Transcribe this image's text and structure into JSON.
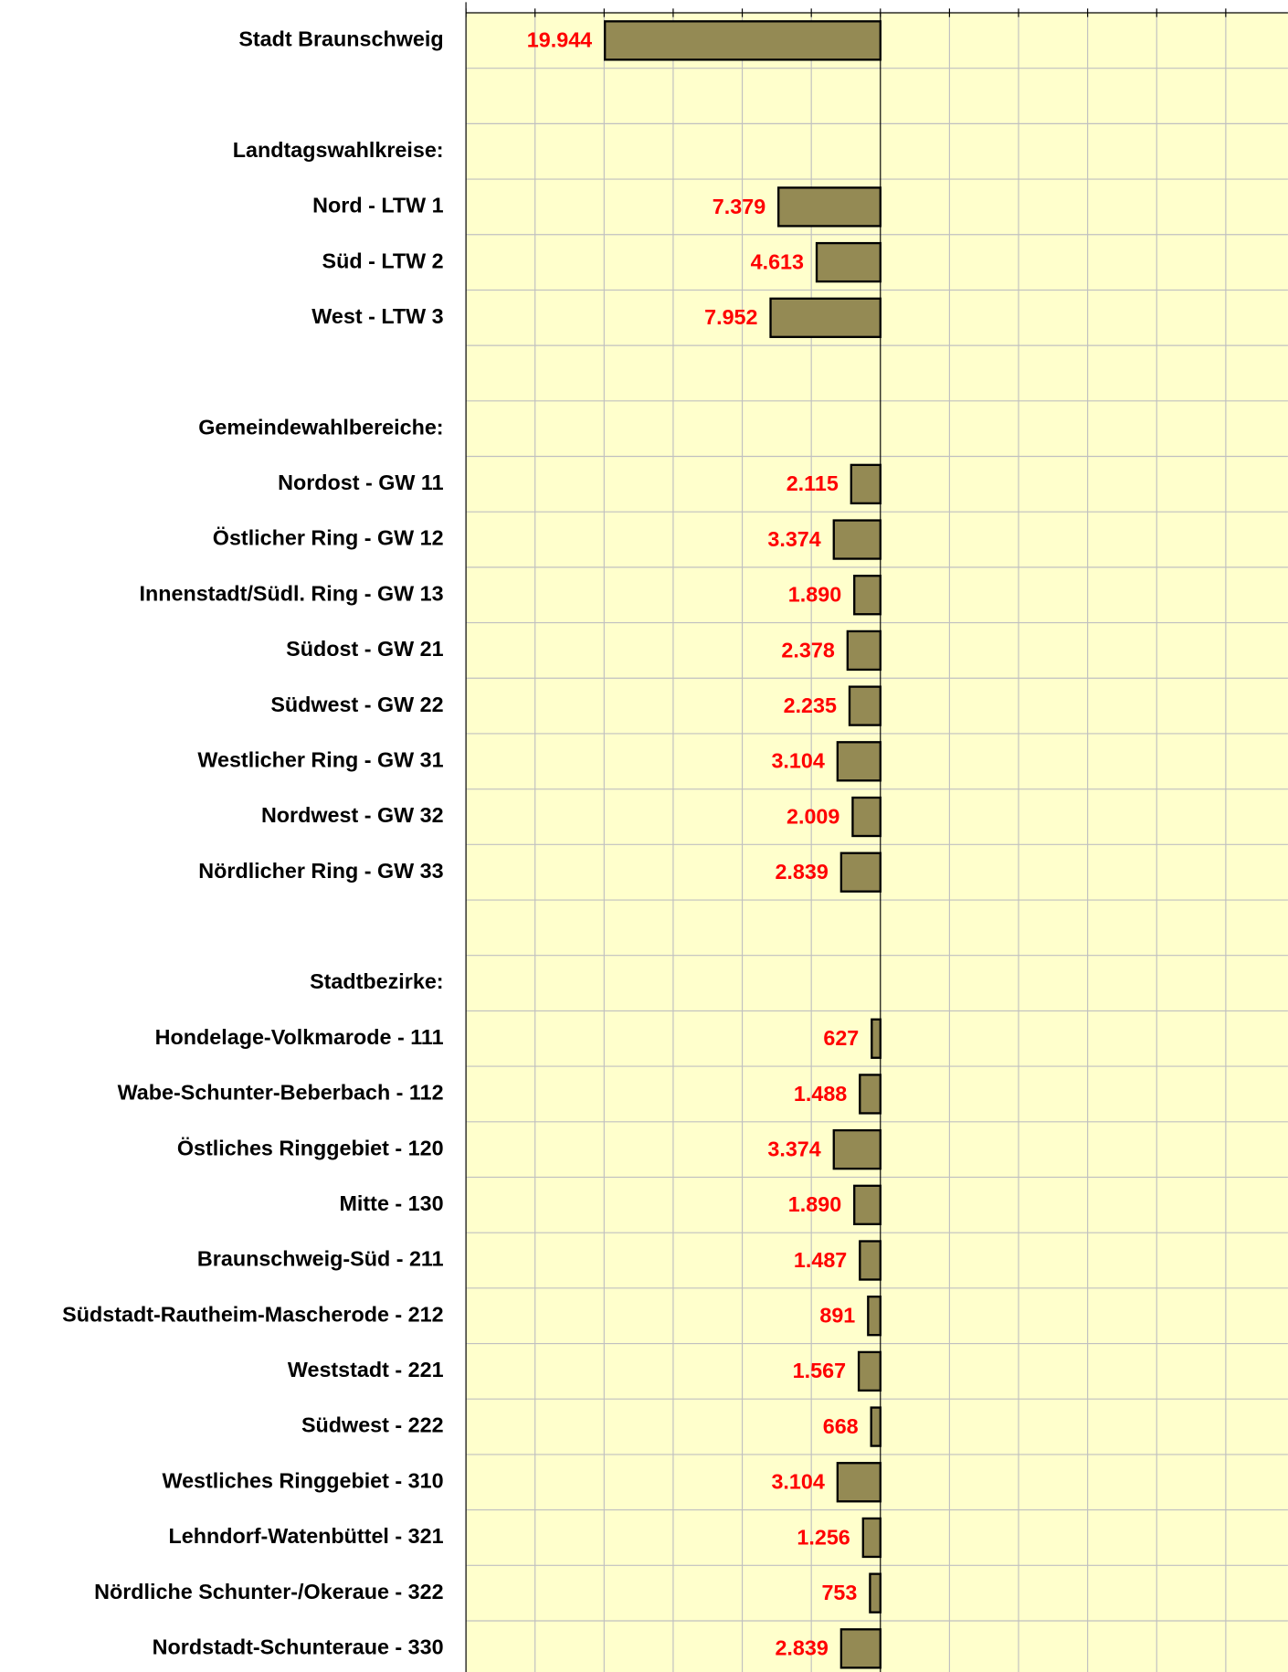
{
  "chart_data": {
    "type": "barh",
    "categories": [
      "Stadt Braunschweig",
      null,
      "Landtagswahlkreise:",
      "Nord - LTW 1",
      "Süd - LTW 2",
      "West - LTW 3",
      null,
      "Gemeindewahlbereiche:",
      "Nordost - GW 11",
      "Östlicher Ring - GW 12",
      "Innenstadt/Südl. Ring - GW 13",
      "Südost - GW 21",
      "Südwest - GW 22",
      "Westlicher Ring - GW 31",
      "Nordwest - GW 32",
      "Nördlicher Ring - GW 33",
      null,
      "Stadtbezirke:",
      "Hondelage-Volkmarode - 111",
      "Wabe-Schunter-Beberbach - 112",
      "Östliches Ringgebiet - 120",
      "Mitte - 130",
      "Braunschweig-Süd - 211",
      "Südstadt-Rautheim-Mascherode - 212",
      "Weststadt - 221",
      "Südwest - 222",
      "Westliches Ringgebiet - 310",
      "Lehndorf-Watenbüttel - 321",
      "Nördliche Schunter-/Okeraue - 322",
      "Nordstadt-Schunteraue - 330"
    ],
    "values": [
      19944,
      null,
      null,
      7379,
      4613,
      7952,
      null,
      null,
      2115,
      3374,
      1890,
      2378,
      2235,
      3104,
      2009,
      2839,
      null,
      null,
      627,
      1488,
      3374,
      1890,
      1487,
      891,
      1567,
      668,
      3104,
      1256,
      753,
      2839
    ],
    "value_labels": [
      "19.944",
      null,
      null,
      "7.379",
      "4.613",
      "7.952",
      null,
      null,
      "2.115",
      "3.374",
      "1.890",
      "2.378",
      "2.235",
      "3.104",
      "2.009",
      "2.839",
      null,
      null,
      "627",
      "1.488",
      "3.374",
      "1.890",
      "1.487",
      "891",
      "1.567",
      "668",
      "3.104",
      "1.256",
      "753",
      "2.839"
    ],
    "color": "#948a54",
    "label_color": "#ff0000",
    "background": "#ffffcc",
    "xlim": [
      30000,
      -29500
    ],
    "xticks": [
      30000,
      25000,
      20000,
      15000,
      10000,
      5000,
      0,
      -5000,
      -10000,
      -15000,
      -20000,
      -25000
    ],
    "grid": true
  }
}
